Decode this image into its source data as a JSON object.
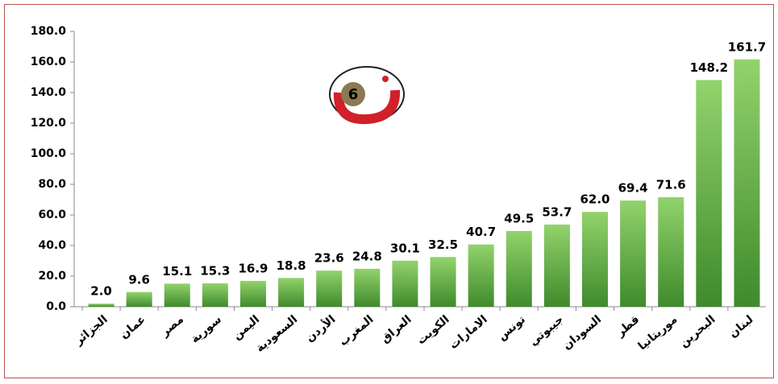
{
  "chart_data": {
    "type": "bar",
    "categories": [
      "الجزائر",
      "عمان",
      "مصر",
      "سورية",
      "اليمن",
      "السعودية",
      "الأردن",
      "المغرب",
      "العراق",
      "الكويت",
      "الامارات",
      "تونس",
      "جيبوتي",
      "السودان",
      "قطر",
      "موريتانيا",
      "البحرين",
      "لبنان"
    ],
    "values": [
      2.0,
      9.6,
      15.1,
      15.3,
      16.9,
      18.8,
      23.6,
      24.8,
      30.1,
      32.5,
      40.7,
      49.5,
      53.7,
      62.0,
      69.4,
      71.6,
      148.2,
      161.7
    ],
    "value_labels": [
      "2.0",
      "9.6",
      "15.1",
      "15.3",
      "16.9",
      "18.8",
      "23.6",
      "24.8",
      "30.1",
      "32.5",
      "40.7",
      "49.5",
      "53.7",
      "62.0",
      "69.4",
      "71.6",
      "148.2",
      "161.7"
    ],
    "color": "#6cbf4a",
    "ylim": [
      0,
      180
    ],
    "yticks": [
      {
        "value": 0,
        "label": "0.0"
      },
      {
        "value": 20,
        "label": "20.0"
      },
      {
        "value": 40,
        "label": "40.0"
      },
      {
        "value": 60,
        "label": "60.0"
      },
      {
        "value": 80,
        "label": "80.0"
      },
      {
        "value": 100,
        "label": "100.0"
      },
      {
        "value": 120,
        "label": "120.0"
      },
      {
        "value": 140,
        "label": "140.0"
      },
      {
        "value": 160,
        "label": "160.0"
      },
      {
        "value": 180,
        "label": "180.0"
      }
    ],
    "logo_text": "6"
  }
}
